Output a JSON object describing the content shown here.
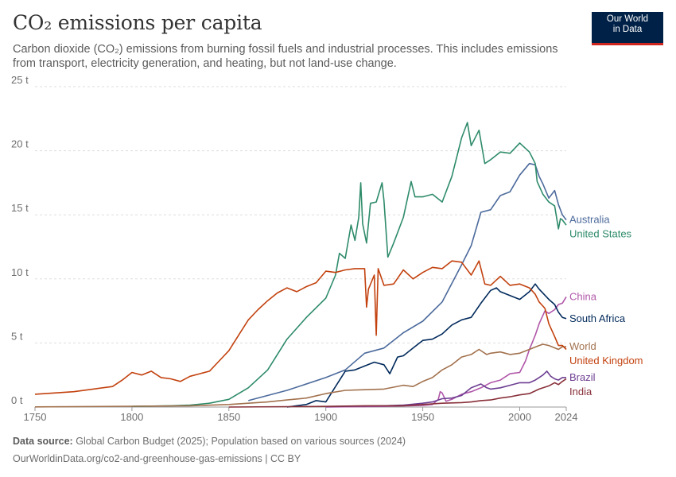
{
  "header": {
    "title": "CO₂ emissions per capita",
    "subtitle": "Carbon dioxide (CO₂) emissions from burning fossil fuels and industrial processes. This includes emissions from transport, electricity generation, and heating, but not land-use change.",
    "logo_line1": "Our World",
    "logo_line2": "in Data"
  },
  "footer": {
    "source_label": "Data source:",
    "source_text": "Global Carbon Budget (2025); Population based on various sources (2024)",
    "url_text": "OurWorldinData.org/co2-and-greenhouse-gas-emissions | CC BY"
  },
  "colors": {
    "brand_navy": "#002147",
    "brand_red": "#ce261e",
    "grid": "#dddddd"
  },
  "chart_data": {
    "type": "line",
    "title": "CO₂ emissions per capita",
    "xlabel": "",
    "ylabel": "",
    "xlim": [
      1750,
      2024
    ],
    "ylim": [
      0,
      25
    ],
    "y_ticks": [
      0,
      5,
      10,
      15,
      20,
      25
    ],
    "y_tick_labels": [
      "0 t",
      "5 t",
      "10 t",
      "15 t",
      "20 t",
      "25 t"
    ],
    "x_ticks": [
      1750,
      1800,
      1850,
      1900,
      1950,
      2000,
      2024
    ],
    "x_tick_labels": [
      "1750",
      "1800",
      "1850",
      "1900",
      "1950",
      "2000",
      "2024"
    ],
    "grid": "horizontal dashed",
    "legend": "inline labels at line ends (right)",
    "series": [
      {
        "name": "Australia",
        "color": "#4c6a9c",
        "x": [
          1860,
          1880,
          1900,
          1910,
          1920,
          1930,
          1940,
          1950,
          1960,
          1970,
          1975,
          1980,
          1985,
          1990,
          1995,
          2000,
          2005,
          2008,
          2010,
          2012,
          2015,
          2018,
          2020,
          2022,
          2024
        ],
        "values": [
          0.5,
          1.3,
          2.3,
          2.9,
          4.2,
          4.6,
          5.8,
          6.7,
          8.2,
          11.1,
          12.6,
          15.2,
          15.4,
          16.5,
          16.8,
          18.1,
          19.0,
          18.9,
          18.0,
          17.4,
          16.3,
          16.9,
          15.8,
          15.0,
          14.6
        ]
      },
      {
        "name": "United States",
        "color": "#2e8b6a",
        "x": [
          1800,
          1820,
          1830,
          1840,
          1850,
          1860,
          1870,
          1880,
          1890,
          1900,
          1905,
          1907,
          1910,
          1913,
          1915,
          1917,
          1918,
          1919,
          1921,
          1923,
          1926,
          1929,
          1930,
          1932,
          1935,
          1940,
          1944,
          1946,
          1950,
          1955,
          1960,
          1965,
          1970,
          1973,
          1975,
          1979,
          1982,
          1985,
          1990,
          1995,
          2000,
          2005,
          2008,
          2009,
          2012,
          2015,
          2018,
          2020,
          2021,
          2022,
          2024
        ],
        "values": [
          0.05,
          0.1,
          0.15,
          0.3,
          0.6,
          1.5,
          2.9,
          5.3,
          7.0,
          8.5,
          10.3,
          12.0,
          11.6,
          14.2,
          13.0,
          14.8,
          17.5,
          14.3,
          12.8,
          15.9,
          16.0,
          17.5,
          16.1,
          11.7,
          12.8,
          14.8,
          17.6,
          16.4,
          16.4,
          16.6,
          16.0,
          18.0,
          21.0,
          22.2,
          20.4,
          21.6,
          19.0,
          19.3,
          19.9,
          19.8,
          20.6,
          19.9,
          19.0,
          17.6,
          16.6,
          16.0,
          15.7,
          13.9,
          14.7,
          14.6,
          14.2
        ]
      },
      {
        "name": "China",
        "color": "#b057a9",
        "x": [
          1900,
          1930,
          1950,
          1955,
          1958,
          1959,
          1960,
          1962,
          1965,
          1970,
          1975,
          1980,
          1985,
          1990,
          1995,
          2000,
          2003,
          2005,
          2008,
          2010,
          2013,
          2015,
          2018,
          2020,
          2022,
          2024
        ],
        "values": [
          0.0,
          0.05,
          0.13,
          0.2,
          0.6,
          1.2,
          1.1,
          0.45,
          0.6,
          1.0,
          1.2,
          1.5,
          1.9,
          2.1,
          2.6,
          2.7,
          3.6,
          4.5,
          5.6,
          6.5,
          7.5,
          7.3,
          7.6,
          8.0,
          8.1,
          8.6
        ]
      },
      {
        "name": "South Africa",
        "color": "#00295b",
        "x": [
          1880,
          1890,
          1895,
          1900,
          1905,
          1910,
          1915,
          1920,
          1925,
          1930,
          1933,
          1937,
          1940,
          1945,
          1950,
          1955,
          1960,
          1965,
          1970,
          1975,
          1980,
          1985,
          1988,
          1990,
          1995,
          2000,
          2005,
          2008,
          2010,
          2015,
          2018,
          2020,
          2022,
          2024
        ],
        "values": [
          0.0,
          0.2,
          0.5,
          0.4,
          1.6,
          2.8,
          2.9,
          3.2,
          3.5,
          3.3,
          2.6,
          3.9,
          4.0,
          4.6,
          5.2,
          5.3,
          5.7,
          6.4,
          6.8,
          7.0,
          8.1,
          9.1,
          9.3,
          9.0,
          8.7,
          8.4,
          9.0,
          9.6,
          9.2,
          8.4,
          8.0,
          7.4,
          7.0,
          6.9
        ]
      },
      {
        "name": "World",
        "color": "#a2714d",
        "x": [
          1750,
          1800,
          1830,
          1850,
          1870,
          1880,
          1890,
          1900,
          1910,
          1920,
          1930,
          1940,
          1945,
          1950,
          1955,
          1960,
          1965,
          1970,
          1975,
          1979,
          1983,
          1985,
          1990,
          1995,
          2000,
          2005,
          2010,
          2012,
          2015,
          2020,
          2022,
          2024
        ],
        "values": [
          0.01,
          0.06,
          0.1,
          0.2,
          0.4,
          0.55,
          0.7,
          1.05,
          1.3,
          1.35,
          1.4,
          1.7,
          1.6,
          2.0,
          2.3,
          2.9,
          3.3,
          3.9,
          4.1,
          4.5,
          4.1,
          4.2,
          4.3,
          4.1,
          4.2,
          4.5,
          4.8,
          4.9,
          4.8,
          4.5,
          4.7,
          4.7
        ]
      },
      {
        "name": "United Kingdom",
        "color": "#c2410e",
        "x": [
          1750,
          1760,
          1770,
          1780,
          1790,
          1795,
          1800,
          1805,
          1810,
          1815,
          1820,
          1825,
          1830,
          1835,
          1840,
          1845,
          1850,
          1855,
          1860,
          1865,
          1870,
          1875,
          1880,
          1885,
          1890,
          1895,
          1900,
          1905,
          1910,
          1915,
          1920,
          1921,
          1922,
          1925,
          1926,
          1927,
          1930,
          1935,
          1940,
          1945,
          1950,
          1955,
          1960,
          1965,
          1970,
          1975,
          1979,
          1982,
          1985,
          1990,
          1995,
          2000,
          2005,
          2008,
          2010,
          2013,
          2015,
          2018,
          2020,
          2022,
          2024
        ],
        "values": [
          1.0,
          1.1,
          1.2,
          1.4,
          1.6,
          2.1,
          2.7,
          2.5,
          2.8,
          2.3,
          2.2,
          2.0,
          2.4,
          2.6,
          2.8,
          3.6,
          4.4,
          5.6,
          6.8,
          7.6,
          8.3,
          8.9,
          9.3,
          9.0,
          9.4,
          9.7,
          10.6,
          10.5,
          10.7,
          10.8,
          10.8,
          7.8,
          9.2,
          10.3,
          5.6,
          10.8,
          9.5,
          9.6,
          10.7,
          10.0,
          10.5,
          10.9,
          10.8,
          11.4,
          11.3,
          10.3,
          11.4,
          9.6,
          9.5,
          10.2,
          9.5,
          9.6,
          9.3,
          8.8,
          8.2,
          7.7,
          6.5,
          5.5,
          4.8,
          4.8,
          4.5
        ]
      },
      {
        "name": "Brazil",
        "color": "#6d3e91",
        "x": [
          1900,
          1930,
          1940,
          1950,
          1955,
          1960,
          1965,
          1970,
          1975,
          1980,
          1983,
          1985,
          1990,
          1995,
          2000,
          2005,
          2008,
          2010,
          2012,
          2014,
          2016,
          2018,
          2020,
          2022,
          2024
        ],
        "values": [
          0.03,
          0.1,
          0.15,
          0.3,
          0.4,
          0.65,
          0.7,
          0.9,
          1.5,
          1.8,
          1.5,
          1.4,
          1.5,
          1.7,
          1.9,
          1.9,
          2.1,
          2.3,
          2.5,
          2.8,
          2.4,
          2.2,
          2.1,
          2.3,
          2.3
        ]
      },
      {
        "name": "India",
        "color": "#883039",
        "x": [
          1850,
          1900,
          1920,
          1940,
          1950,
          1960,
          1970,
          1975,
          1980,
          1985,
          1990,
          1995,
          2000,
          2005,
          2010,
          2015,
          2018,
          2020,
          2022,
          2024
        ],
        "values": [
          0.0,
          0.05,
          0.1,
          0.1,
          0.2,
          0.3,
          0.35,
          0.4,
          0.5,
          0.55,
          0.7,
          0.8,
          0.95,
          1.05,
          1.4,
          1.65,
          1.9,
          1.75,
          2.0,
          2.2
        ]
      }
    ],
    "end_labels": [
      {
        "text": "Australia",
        "color": "#4c6a9c",
        "series": "Australia"
      },
      {
        "text": "United States",
        "color": "#2e8b6a",
        "series": "United States"
      },
      {
        "text": "China",
        "color": "#b057a9",
        "series": "China"
      },
      {
        "text": "South Africa",
        "color": "#00295b",
        "series": "South Africa"
      },
      {
        "text": "World",
        "color": "#a2714d",
        "series": "World"
      },
      {
        "text": "United Kingdom",
        "color": "#c2410e",
        "series": "United Kingdom"
      },
      {
        "text": "Brazil",
        "color": "#6d3e91",
        "series": "Brazil"
      },
      {
        "text": "India",
        "color": "#883039",
        "series": "India"
      }
    ]
  }
}
